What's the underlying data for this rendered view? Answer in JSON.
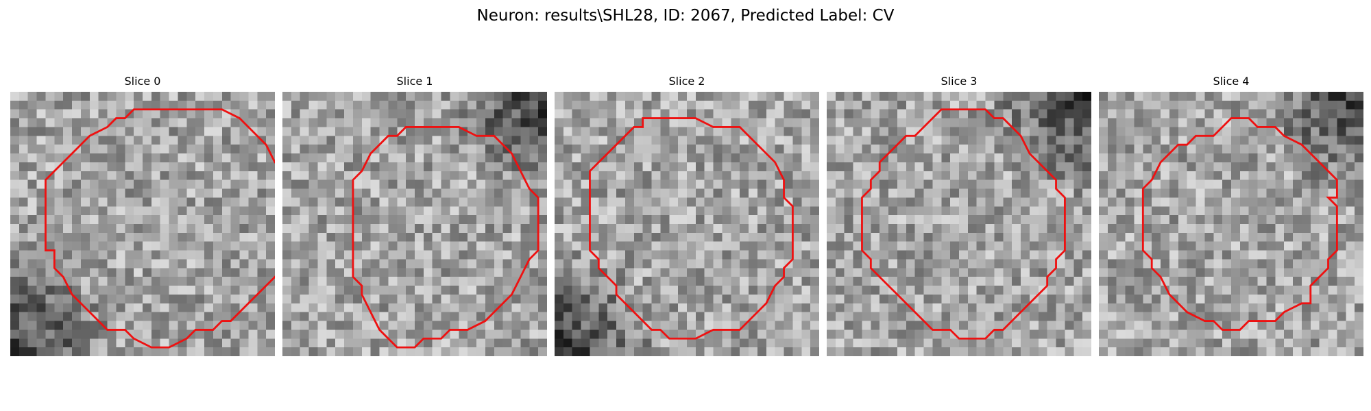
{
  "figure": {
    "title": "Neuron: results\\SHL28, ID: 2067, Predicted Label: CV",
    "contour_color": "#ee1111",
    "slices": [
      {
        "title": "Slice 0",
        "seed": 11,
        "dark_corner": "bottom-left",
        "contour": [
          [
            17,
            2
          ],
          [
            24,
            2
          ],
          [
            26,
            3
          ],
          [
            27,
            4
          ],
          [
            29,
            6
          ],
          [
            30,
            8
          ],
          [
            31,
            9
          ],
          [
            31,
            17
          ],
          [
            32,
            17
          ],
          [
            31,
            18
          ],
          [
            31,
            20
          ],
          [
            29,
            22
          ],
          [
            27,
            24
          ],
          [
            25,
            26
          ],
          [
            24,
            26
          ],
          [
            23,
            27
          ],
          [
            21,
            27
          ],
          [
            20,
            28
          ],
          [
            18,
            29
          ],
          [
            16,
            29
          ],
          [
            14,
            28
          ],
          [
            13,
            27
          ],
          [
            11,
            27
          ],
          [
            9,
            25
          ],
          [
            7,
            23
          ],
          [
            6,
            21
          ],
          [
            5,
            20
          ],
          [
            5,
            18
          ],
          [
            4,
            18
          ],
          [
            4,
            10
          ],
          [
            5,
            9
          ],
          [
            7,
            7
          ],
          [
            9,
            5
          ],
          [
            11,
            4
          ],
          [
            12,
            3
          ],
          [
            13,
            3
          ],
          [
            14,
            2
          ]
        ]
      },
      {
        "title": "Slice 1",
        "seed": 23,
        "dark_corner": "top-right",
        "contour": [
          [
            15,
            4
          ],
          [
            20,
            4
          ],
          [
            22,
            5
          ],
          [
            24,
            5
          ],
          [
            25,
            6
          ],
          [
            26,
            7
          ],
          [
            27,
            9
          ],
          [
            28,
            11
          ],
          [
            29,
            12
          ],
          [
            29,
            18
          ],
          [
            28,
            19
          ],
          [
            27,
            21
          ],
          [
            26,
            23
          ],
          [
            25,
            24
          ],
          [
            24,
            25
          ],
          [
            23,
            26
          ],
          [
            21,
            27
          ],
          [
            19,
            27
          ],
          [
            18,
            28
          ],
          [
            16,
            28
          ],
          [
            15,
            29
          ],
          [
            13,
            29
          ],
          [
            12,
            28
          ],
          [
            11,
            27
          ],
          [
            10,
            25
          ],
          [
            9,
            23
          ],
          [
            9,
            22
          ],
          [
            8,
            21
          ],
          [
            8,
            10
          ],
          [
            9,
            9
          ],
          [
            10,
            7
          ],
          [
            11,
            6
          ],
          [
            12,
            5
          ],
          [
            13,
            5
          ],
          [
            14,
            4
          ]
        ]
      },
      {
        "title": "Slice 2",
        "seed": 37,
        "dark_corner": "bottom-left",
        "contour": [
          [
            10,
            3
          ],
          [
            16,
            3
          ],
          [
            18,
            4
          ],
          [
            21,
            4
          ],
          [
            22,
            5
          ],
          [
            25,
            8
          ],
          [
            26,
            10
          ],
          [
            26,
            12
          ],
          [
            27,
            13
          ],
          [
            27,
            19
          ],
          [
            26,
            20
          ],
          [
            26,
            21
          ],
          [
            25,
            22
          ],
          [
            24,
            24
          ],
          [
            23,
            25
          ],
          [
            22,
            26
          ],
          [
            21,
            27
          ],
          [
            18,
            27
          ],
          [
            16,
            28
          ],
          [
            13,
            28
          ],
          [
            12,
            27
          ],
          [
            11,
            27
          ],
          [
            10,
            26
          ],
          [
            9,
            25
          ],
          [
            7,
            23
          ],
          [
            7,
            22
          ],
          [
            6,
            21
          ],
          [
            5,
            20
          ],
          [
            5,
            19
          ],
          [
            4,
            18
          ],
          [
            4,
            9
          ],
          [
            5,
            8
          ],
          [
            6,
            7
          ],
          [
            7,
            6
          ],
          [
            8,
            5
          ],
          [
            9,
            4
          ],
          [
            10,
            4
          ]
        ]
      },
      {
        "title": "Slice 3",
        "seed": 53,
        "dark_corner": "top-right",
        "contour": [
          [
            13,
            2
          ],
          [
            18,
            2
          ],
          [
            19,
            3
          ],
          [
            20,
            3
          ],
          [
            22,
            5
          ],
          [
            23,
            7
          ],
          [
            25,
            9
          ],
          [
            26,
            10
          ],
          [
            26,
            11
          ],
          [
            27,
            12
          ],
          [
            27,
            18
          ],
          [
            26,
            19
          ],
          [
            26,
            20
          ],
          [
            25,
            21
          ],
          [
            25,
            22
          ],
          [
            24,
            23
          ],
          [
            23,
            24
          ],
          [
            22,
            25
          ],
          [
            21,
            26
          ],
          [
            20,
            27
          ],
          [
            19,
            27
          ],
          [
            18,
            28
          ],
          [
            15,
            28
          ],
          [
            14,
            27
          ],
          [
            12,
            27
          ],
          [
            11,
            26
          ],
          [
            10,
            25
          ],
          [
            9,
            24
          ],
          [
            8,
            23
          ],
          [
            7,
            22
          ],
          [
            6,
            21
          ],
          [
            5,
            20
          ],
          [
            5,
            19
          ],
          [
            4,
            18
          ],
          [
            4,
            12
          ],
          [
            5,
            11
          ],
          [
            5,
            10
          ],
          [
            6,
            9
          ],
          [
            6,
            8
          ],
          [
            8,
            6
          ],
          [
            9,
            5
          ],
          [
            10,
            5
          ],
          [
            11,
            4
          ],
          [
            12,
            3
          ]
        ]
      },
      {
        "title": "Slice 4",
        "seed": 71,
        "dark_corner": "top-right",
        "contour": [
          [
            15,
            3
          ],
          [
            17,
            3
          ],
          [
            18,
            4
          ],
          [
            20,
            4
          ],
          [
            21,
            5
          ],
          [
            23,
            6
          ],
          [
            25,
            8
          ],
          [
            26,
            9
          ],
          [
            27,
            10
          ],
          [
            27,
            12
          ],
          [
            26,
            12
          ],
          [
            27,
            13
          ],
          [
            27,
            18
          ],
          [
            26,
            19
          ],
          [
            26,
            20
          ],
          [
            25,
            21
          ],
          [
            24,
            22
          ],
          [
            24,
            24
          ],
          [
            23,
            24
          ],
          [
            21,
            25
          ],
          [
            20,
            26
          ],
          [
            17,
            26
          ],
          [
            16,
            27
          ],
          [
            14,
            27
          ],
          [
            13,
            26
          ],
          [
            12,
            26
          ],
          [
            10,
            25
          ],
          [
            9,
            24
          ],
          [
            8,
            23
          ],
          [
            7,
            21
          ],
          [
            6,
            20
          ],
          [
            6,
            19
          ],
          [
            5,
            18
          ],
          [
            5,
            11
          ],
          [
            6,
            10
          ],
          [
            7,
            8
          ],
          [
            8,
            7
          ],
          [
            9,
            6
          ],
          [
            10,
            6
          ],
          [
            11,
            5
          ],
          [
            13,
            5
          ],
          [
            14,
            4
          ]
        ]
      }
    ]
  }
}
